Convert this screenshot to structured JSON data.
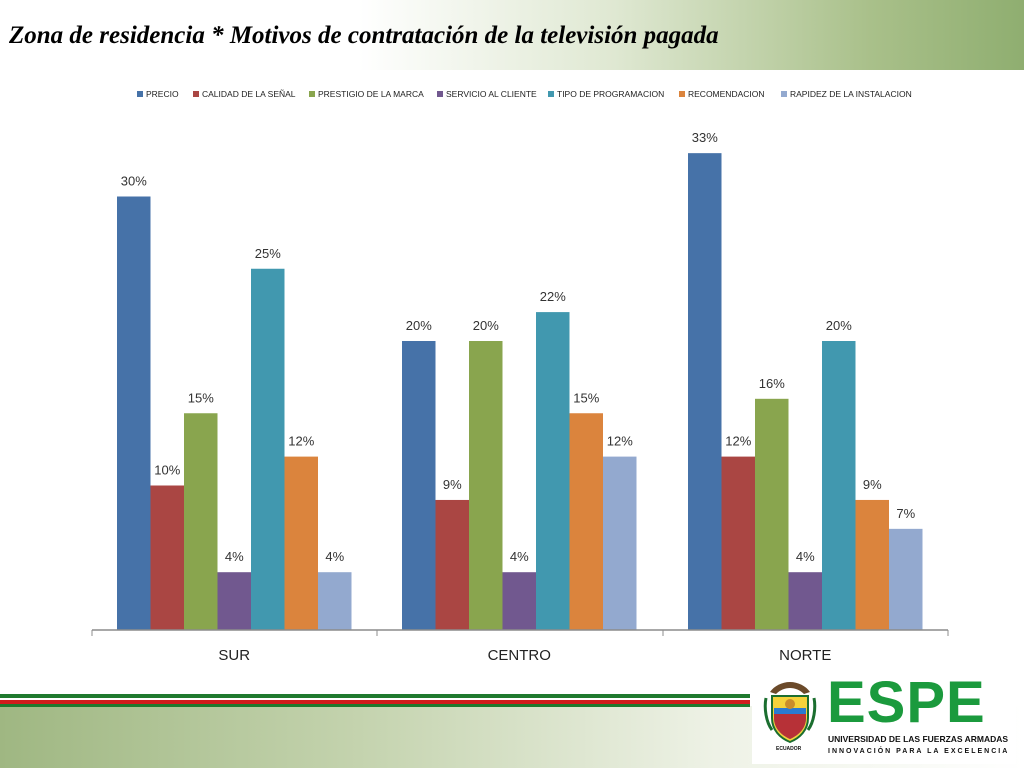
{
  "title": "Zona de residencia * Motivos de contratación de la televisión pagada",
  "chart_data": {
    "type": "bar",
    "categories": [
      "SUR",
      "CENTRO",
      "NORTE"
    ],
    "series": [
      {
        "name": "PRECIO",
        "color": "#4672a8",
        "values": [
          30,
          20,
          33
        ],
        "labels": [
          "30%",
          "20%",
          "33%"
        ]
      },
      {
        "name": "CALIDAD DE LA SEÑAL",
        "color": "#aa4643",
        "values": [
          10,
          9,
          12
        ],
        "labels": [
          "10%",
          "9%",
          "12%"
        ]
      },
      {
        "name": "PRESTIGIO DE LA MARCA",
        "color": "#89a54e",
        "values": [
          15,
          20,
          16
        ],
        "labels": [
          "15%",
          "20%",
          "16%"
        ]
      },
      {
        "name": "SERVICIO AL CLIENTE",
        "color": "#71588f",
        "values": [
          4,
          4,
          4
        ],
        "labels": [
          "4%",
          "4%",
          "4%"
        ]
      },
      {
        "name": "TIPO DE PROGRAMACION",
        "color": "#4198af",
        "values": [
          25,
          22,
          20
        ],
        "labels": [
          "25%",
          "22%",
          "20%"
        ]
      },
      {
        "name": "RECOMENDACION",
        "color": "#db843d",
        "values": [
          12,
          15,
          9
        ],
        "labels": [
          "12%",
          "15%",
          "9%"
        ]
      },
      {
        "name": "RAPIDEZ DE LA INSTALACION",
        "color": "#93a9cf",
        "values": [
          4,
          12,
          7
        ],
        "labels": [
          "4%",
          "12%",
          "7%"
        ]
      }
    ],
    "legend_position": "top",
    "grid": false,
    "ylim": [
      0,
      35
    ]
  },
  "logo": {
    "name": "ESPE",
    "subtitle": "UNIVERSIDAD DE LAS FUERZAS ARMADAS",
    "slogan": "INNOVACIÓN PARA LA EXCELENCIA",
    "country": "ECUADOR",
    "color": "#1b9a3d"
  }
}
